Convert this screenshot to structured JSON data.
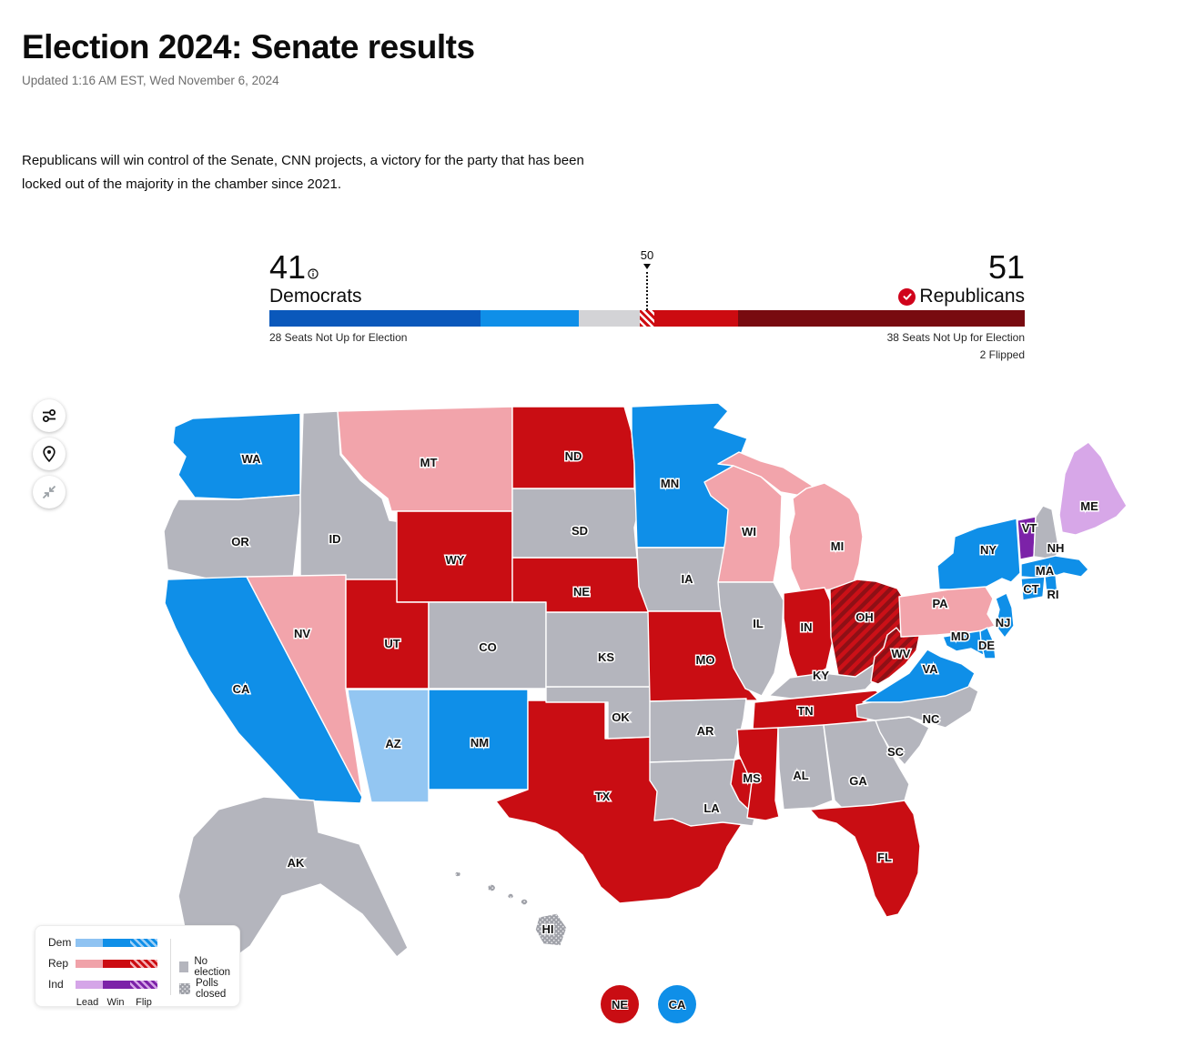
{
  "page": {
    "title": "Election 2024: Senate results",
    "updated": "Updated 1:16 AM EST, Wed November 6, 2024",
    "summary": "Republicans will win control of the Senate, CNN projects, a victory for the party that has been locked out of the majority in the chamber since 2021."
  },
  "balance_of_power": {
    "democrats": {
      "count": "41",
      "label": "Democrats",
      "seats_not_up": "28 Seats Not Up for Election"
    },
    "republicans": {
      "count": "51",
      "label": "Republicans",
      "seats_not_up": "38 Seats Not Up for Election",
      "flipped": "2 Flipped"
    },
    "majority_marker": "50",
    "total_seats": 100,
    "segments": [
      {
        "name": "dem-not-up",
        "seats": 28,
        "color": "#0a58bb"
      },
      {
        "name": "dem-win",
        "seats": 13,
        "color": "#0f8fe8"
      },
      {
        "name": "undecided",
        "seats": 8,
        "color": "#d3d3d6"
      },
      {
        "name": "rep-flip",
        "seats": 2,
        "pattern": "red-white-hatch"
      },
      {
        "name": "rep-win",
        "seats": 11,
        "color": "#cc0b11"
      },
      {
        "name": "rep-not-up",
        "seats": 38,
        "color": "#780b10"
      }
    ]
  },
  "map": {
    "colors": {
      "dem_win": "#0f8fe8",
      "dem_lead": "#93c6f2",
      "rep_win": "#c90d13",
      "rep_lead": "#f2a4ab",
      "ind_win": "#7c22a8",
      "ind_lead": "#d7a7e8",
      "no_election": "#b4b5bd"
    },
    "states": [
      {
        "abbr": "WA",
        "status": "dem_win"
      },
      {
        "abbr": "OR",
        "status": "no_election"
      },
      {
        "abbr": "CA",
        "status": "dem_win"
      },
      {
        "abbr": "ID",
        "status": "no_election"
      },
      {
        "abbr": "NV",
        "status": "rep_lead"
      },
      {
        "abbr": "MT",
        "status": "rep_lead"
      },
      {
        "abbr": "WY",
        "status": "rep_win"
      },
      {
        "abbr": "UT",
        "status": "rep_win"
      },
      {
        "abbr": "CO",
        "status": "no_election"
      },
      {
        "abbr": "AZ",
        "status": "dem_lead"
      },
      {
        "abbr": "NM",
        "status": "dem_win"
      },
      {
        "abbr": "TX",
        "status": "rep_win"
      },
      {
        "abbr": "OK",
        "status": "no_election"
      },
      {
        "abbr": "KS",
        "status": "no_election"
      },
      {
        "abbr": "NE",
        "status": "rep_win"
      },
      {
        "abbr": "SD",
        "status": "no_election"
      },
      {
        "abbr": "ND",
        "status": "rep_win"
      },
      {
        "abbr": "MN",
        "status": "dem_win"
      },
      {
        "abbr": "IA",
        "status": "no_election"
      },
      {
        "abbr": "MO",
        "status": "rep_win"
      },
      {
        "abbr": "AR",
        "status": "no_election"
      },
      {
        "abbr": "LA",
        "status": "no_election"
      },
      {
        "abbr": "WI",
        "status": "rep_lead"
      },
      {
        "abbr": "IL",
        "status": "no_election"
      },
      {
        "abbr": "MI",
        "status": "rep_lead"
      },
      {
        "abbr": "IN",
        "status": "rep_win"
      },
      {
        "abbr": "OH",
        "status": "flip_rep"
      },
      {
        "abbr": "KY",
        "status": "no_election"
      },
      {
        "abbr": "TN",
        "status": "rep_win"
      },
      {
        "abbr": "MS",
        "status": "rep_win"
      },
      {
        "abbr": "AL",
        "status": "no_election"
      },
      {
        "abbr": "GA",
        "status": "no_election"
      },
      {
        "abbr": "SC",
        "status": "no_election"
      },
      {
        "abbr": "NC",
        "status": "no_election"
      },
      {
        "abbr": "FL",
        "status": "rep_win"
      },
      {
        "abbr": "VA",
        "status": "dem_win"
      },
      {
        "abbr": "WV",
        "status": "flip_rep"
      },
      {
        "abbr": "PA",
        "status": "rep_lead"
      },
      {
        "abbr": "NY",
        "status": "dem_win"
      },
      {
        "abbr": "NJ",
        "status": "dem_win"
      },
      {
        "abbr": "MD",
        "status": "dem_win"
      },
      {
        "abbr": "DE",
        "status": "dem_win"
      },
      {
        "abbr": "VT",
        "status": "ind_win"
      },
      {
        "abbr": "NH",
        "status": "no_election"
      },
      {
        "abbr": "ME",
        "status": "ind_lead"
      },
      {
        "abbr": "MA",
        "status": "dem_win"
      },
      {
        "abbr": "CT",
        "status": "dem_win"
      },
      {
        "abbr": "RI",
        "status": "dem_win"
      },
      {
        "abbr": "AK",
        "status": "no_election"
      },
      {
        "abbr": "HI",
        "status": "polls_closed"
      }
    ],
    "badges": [
      {
        "label": "NE",
        "status": "rep_win"
      },
      {
        "label": "CA",
        "status": "dem_win"
      }
    ]
  },
  "legend": {
    "rows": [
      {
        "party": "Dem",
        "key": "dem"
      },
      {
        "party": "Rep",
        "key": "rep"
      },
      {
        "party": "Ind",
        "key": "ind"
      }
    ],
    "columns": [
      "Lead",
      "Win",
      "Flip"
    ],
    "lead_colors": {
      "dem": "#8fc3f2",
      "rep": "#f0a2a9",
      "ind": "#d5a5e8"
    },
    "win_colors": {
      "dem": "#0f8fe8",
      "rep": "#cc0b11",
      "ind": "#7c22a8"
    },
    "no_election": "No election",
    "polls_closed": "Polls closed"
  },
  "toolbar": {
    "buttons": [
      "filter",
      "location",
      "collapse"
    ]
  }
}
